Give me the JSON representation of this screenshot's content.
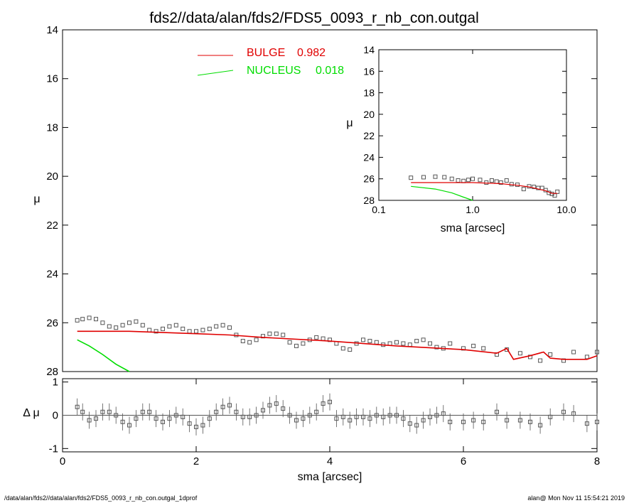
{
  "header": {
    "title": "fds2//data/alan/fds2/FDS5_0093_r_nb_con.outgal"
  },
  "footer": {
    "path": "/data/alan/fds2//data/alan/fds2/FDS5_0093_r_nb_con.outgal_1dprof",
    "stamp": "alan@  Mon Nov 11 15:54:21 2019"
  },
  "colors": {
    "bulge": "#e00000",
    "nucleus": "#00dd00",
    "data": "#555555"
  },
  "chart_data": [
    {
      "type": "scatter",
      "panel": "main",
      "ylabel": "μ",
      "xlim": [
        0,
        8
      ],
      "ylim": [
        28,
        14
      ],
      "yticks": [
        "14",
        "16",
        "18",
        "20",
        "22",
        "24",
        "26",
        "28"
      ],
      "legend": [
        {
          "name": "BULGE",
          "value": "0.982",
          "color": "#e00000"
        },
        {
          "name": "NUCLEUS",
          "value": "0.018",
          "color": "#00dd00"
        }
      ],
      "series": [
        {
          "name": "data",
          "x": [
            0.22,
            0.3,
            0.4,
            0.5,
            0.6,
            0.7,
            0.8,
            0.9,
            1.0,
            1.1,
            1.2,
            1.3,
            1.4,
            1.5,
            1.6,
            1.7,
            1.8,
            1.9,
            2.0,
            2.1,
            2.2,
            2.3,
            2.4,
            2.5,
            2.6,
            2.7,
            2.8,
            2.9,
            3.0,
            3.1,
            3.2,
            3.3,
            3.4,
            3.5,
            3.6,
            3.7,
            3.8,
            3.9,
            4.0,
            4.1,
            4.2,
            4.3,
            4.4,
            4.5,
            4.6,
            4.7,
            4.8,
            4.9,
            5.0,
            5.1,
            5.2,
            5.3,
            5.4,
            5.5,
            5.6,
            5.7,
            5.8,
            6.0,
            6.15,
            6.3,
            6.5,
            6.65,
            6.85,
            7.0,
            7.15,
            7.3,
            7.5,
            7.65,
            7.85,
            8.0
          ],
          "y": [
            25.9,
            25.85,
            25.8,
            25.85,
            26.0,
            26.15,
            26.2,
            26.1,
            26.0,
            25.95,
            26.1,
            26.3,
            26.35,
            26.25,
            26.15,
            26.1,
            26.25,
            26.35,
            26.35,
            26.3,
            26.25,
            26.15,
            26.1,
            26.2,
            26.5,
            26.75,
            26.8,
            26.7,
            26.55,
            26.45,
            26.45,
            26.5,
            26.8,
            26.95,
            26.85,
            26.7,
            26.6,
            26.65,
            26.7,
            26.85,
            27.05,
            27.1,
            26.85,
            26.7,
            26.75,
            26.8,
            26.9,
            26.85,
            26.8,
            26.85,
            26.9,
            26.75,
            26.7,
            26.85,
            27.0,
            27.05,
            26.85,
            27.05,
            26.95,
            27.05,
            27.3,
            27.1,
            27.25,
            27.4,
            27.55,
            27.3,
            27.55,
            27.2,
            27.4,
            27.2
          ]
        },
        {
          "name": "BULGE",
          "x": [
            0.22,
            1.0,
            2.0,
            2.5,
            3.0,
            4.0,
            5.0,
            6.0,
            6.5,
            6.65,
            6.75,
            7.0,
            7.2,
            7.3,
            7.5,
            7.85,
            8.0
          ],
          "y": [
            26.35,
            26.35,
            26.45,
            26.5,
            26.6,
            26.75,
            26.95,
            27.1,
            27.25,
            27.05,
            27.5,
            27.35,
            27.2,
            27.45,
            27.5,
            27.5,
            27.35
          ]
        },
        {
          "name": "NUCLEUS",
          "x": [
            0.22,
            0.4,
            0.6,
            0.8,
            1.0
          ],
          "y": [
            26.7,
            26.95,
            27.3,
            27.7,
            28.05
          ]
        }
      ]
    },
    {
      "type": "scatter",
      "panel": "residual",
      "ylabel": "Δ μ",
      "xlabel": "sma [arcsec]",
      "xlim": [
        0,
        8
      ],
      "ylim": [
        -1.1,
        1.1
      ],
      "xticks": [
        "0",
        "2",
        "4",
        "6",
        "8"
      ],
      "yticks": [
        "1",
        "0",
        "-1"
      ],
      "series": [
        {
          "name": "residual",
          "x": [
            0.22,
            0.3,
            0.4,
            0.5,
            0.6,
            0.7,
            0.8,
            0.9,
            1.0,
            1.1,
            1.2,
            1.3,
            1.4,
            1.5,
            1.6,
            1.7,
            1.8,
            1.9,
            2.0,
            2.1,
            2.2,
            2.3,
            2.4,
            2.5,
            2.6,
            2.7,
            2.8,
            2.9,
            3.0,
            3.1,
            3.2,
            3.3,
            3.4,
            3.5,
            3.6,
            3.7,
            3.8,
            3.9,
            4.0,
            4.1,
            4.2,
            4.3,
            4.4,
            4.5,
            4.6,
            4.7,
            4.8,
            4.9,
            5.0,
            5.1,
            5.2,
            5.3,
            5.4,
            5.5,
            5.6,
            5.7,
            5.8,
            6.0,
            6.15,
            6.3,
            6.5,
            6.65,
            6.85,
            7.0,
            7.15,
            7.3,
            7.5,
            7.65,
            7.85,
            8.0
          ],
          "y": [
            0.25,
            0.1,
            -0.15,
            -0.1,
            0.1,
            0.1,
            0.0,
            -0.2,
            -0.3,
            -0.1,
            0.1,
            0.1,
            -0.1,
            -0.2,
            -0.1,
            0.0,
            -0.05,
            -0.25,
            -0.35,
            -0.3,
            -0.1,
            0.1,
            0.25,
            0.3,
            0.1,
            -0.05,
            -0.05,
            0.0,
            0.15,
            0.3,
            0.35,
            0.2,
            0.0,
            -0.15,
            -0.1,
            0.0,
            0.1,
            0.35,
            0.4,
            -0.1,
            -0.05,
            -0.15,
            -0.05,
            -0.05,
            -0.1,
            0.0,
            -0.05,
            0.0,
            0.0,
            -0.1,
            -0.25,
            -0.3,
            -0.15,
            -0.05,
            0.0,
            0.05,
            -0.2,
            -0.2,
            -0.15,
            -0.2,
            0.1,
            -0.15,
            -0.15,
            -0.2,
            -0.3,
            -0.05,
            0.1,
            0.05,
            -0.25,
            -0.2
          ]
        }
      ]
    },
    {
      "type": "scatter",
      "panel": "inset",
      "ylabel": "μ",
      "xlabel": "sma [arcsec]",
      "xscale": "log",
      "xlim": [
        0.1,
        10.0
      ],
      "ylim": [
        28,
        14
      ],
      "xticks": [
        "0.1",
        "1.0",
        "10.0"
      ],
      "yticks": [
        "14",
        "16",
        "18",
        "20",
        "22",
        "24",
        "26",
        "28"
      ],
      "series": [
        {
          "name": "data",
          "x": [
            0.22,
            0.3,
            0.4,
            0.5,
            0.6,
            0.7,
            0.8,
            0.9,
            1.0,
            1.2,
            1.4,
            1.6,
            1.8,
            2.0,
            2.3,
            2.6,
            3.0,
            3.5,
            4.0,
            4.5,
            5.0,
            5.5,
            6.0,
            6.5,
            7.0,
            7.5,
            8.0
          ],
          "y": [
            25.9,
            25.85,
            25.8,
            25.85,
            26.0,
            26.15,
            26.2,
            26.1,
            26.0,
            26.1,
            26.35,
            26.15,
            26.25,
            26.35,
            26.15,
            26.5,
            26.55,
            26.95,
            26.7,
            26.75,
            26.85,
            26.85,
            27.05,
            27.3,
            27.4,
            27.55,
            27.2
          ]
        },
        {
          "name": "BULGE",
          "x": [
            0.22,
            1.0,
            2.0,
            3.0,
            4.0,
            5.0,
            6.0,
            7.0,
            8.0
          ],
          "y": [
            26.35,
            26.35,
            26.45,
            26.6,
            26.75,
            26.95,
            27.1,
            27.35,
            27.35
          ]
        },
        {
          "name": "NUCLEUS",
          "x": [
            0.22,
            0.4,
            0.6,
            0.8,
            1.0
          ],
          "y": [
            26.7,
            26.95,
            27.3,
            27.7,
            28.05
          ]
        }
      ]
    }
  ]
}
